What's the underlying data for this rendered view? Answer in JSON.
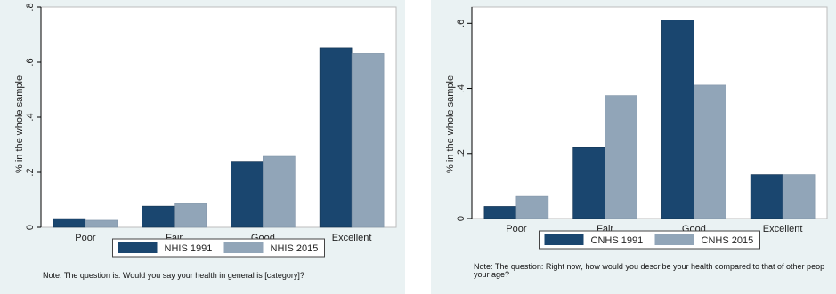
{
  "chart_data": [
    {
      "type": "bar",
      "categories": [
        "Poor",
        "Fair",
        "Good",
        "Excellent"
      ],
      "series": [
        {
          "name": "NHIS 1991",
          "values": [
            0.032,
            0.077,
            0.24,
            0.652
          ],
          "color": "#1a466f"
        },
        {
          "name": "NHIS 2015",
          "values": [
            0.026,
            0.087,
            0.258,
            0.631
          ],
          "color": "#91a5b8"
        }
      ],
      "ylabel": "% in the whole sample",
      "xlabel": "",
      "ylim": [
        0,
        0.8
      ],
      "yticks": [
        0,
        0.2,
        0.4,
        0.6,
        0.8
      ],
      "ytick_labels": [
        "0",
        ".2",
        ".4",
        ".6",
        ".8"
      ],
      "grid": false,
      "legend_position": "bottom",
      "note": "Note: The question is: Would you say your health in general is [category]?"
    },
    {
      "type": "bar",
      "categories": [
        "Poor",
        "Fair",
        "Good",
        "Excellent"
      ],
      "series": [
        {
          "name": "CNHS 1991",
          "values": [
            0.037,
            0.218,
            0.61,
            0.135
          ],
          "color": "#1a466f"
        },
        {
          "name": "CNHS 2015",
          "values": [
            0.068,
            0.378,
            0.41,
            0.135
          ],
          "color": "#91a5b8"
        }
      ],
      "ylabel": "% in the whole sample",
      "xlabel": "",
      "ylim": [
        0,
        0.65
      ],
      "yticks": [
        0,
        0.2,
        0.4,
        0.6
      ],
      "ytick_labels": [
        "0",
        ".2",
        ".4",
        ".6"
      ],
      "grid": false,
      "legend_position": "bottom",
      "note": "Note: The question: Right now, how would you describe your health compared to that of other peop",
      "note_line2": "your age?"
    }
  ]
}
